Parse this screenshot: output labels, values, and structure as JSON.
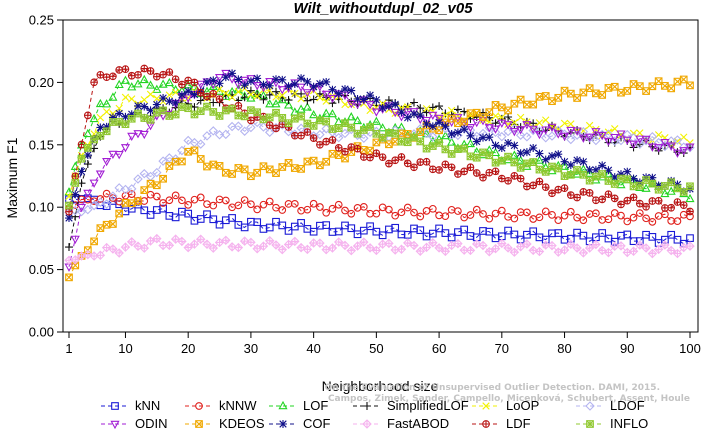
{
  "chart_data": {
    "type": "line",
    "title": "Wilt_withoutdupl_02_v05",
    "xlabel": "Neighborhood size",
    "ylabel": "Maximum F1",
    "xlim": [
      1,
      100
    ],
    "ylim": [
      0,
      0.25
    ],
    "xticks": [
      1,
      10,
      20,
      30,
      40,
      50,
      60,
      70,
      80,
      90,
      100
    ],
    "yticks": [
      "0.00",
      "0.05",
      "0.10",
      "0.15",
      "0.20",
      "0.25"
    ],
    "grid": false,
    "legend_position": "bottom",
    "credit": [
      "Campos, Zimek, Sander, Campello, Micenková, Schubert, Assent, Houle",
      "On the Evaluation of Unsupervised Outlier Detection. DAMI, 2015."
    ],
    "series": [
      {
        "name": "kNN",
        "color": "#1a1ad6",
        "marker": "square",
        "keypoints": [
          [
            1,
            0.105
          ],
          [
            3,
            0.108
          ],
          [
            5,
            0.105
          ],
          [
            10,
            0.1
          ],
          [
            20,
            0.093
          ],
          [
            30,
            0.086
          ],
          [
            50,
            0.081
          ],
          [
            70,
            0.078
          ],
          [
            100,
            0.074
          ]
        ]
      },
      {
        "name": "kNNW",
        "color": "#e0201c",
        "marker": "circle",
        "keypoints": [
          [
            1,
            0.1
          ],
          [
            3,
            0.105
          ],
          [
            8,
            0.108
          ],
          [
            15,
            0.107
          ],
          [
            30,
            0.102
          ],
          [
            50,
            0.097
          ],
          [
            70,
            0.094
          ],
          [
            100,
            0.091
          ]
        ]
      },
      {
        "name": "LOF",
        "color": "#22d422",
        "marker": "triangle-up",
        "keypoints": [
          [
            1,
            0.112
          ],
          [
            3,
            0.15
          ],
          [
            6,
            0.18
          ],
          [
            10,
            0.2
          ],
          [
            20,
            0.195
          ],
          [
            30,
            0.19
          ],
          [
            40,
            0.175
          ],
          [
            50,
            0.165
          ],
          [
            60,
            0.155
          ],
          [
            70,
            0.14
          ],
          [
            80,
            0.13
          ],
          [
            90,
            0.12
          ],
          [
            100,
            0.11
          ]
        ]
      },
      {
        "name": "SimplifiedLOF",
        "color": "#111111",
        "marker": "plus",
        "keypoints": [
          [
            1,
            0.067
          ],
          [
            3,
            0.12
          ],
          [
            6,
            0.16
          ],
          [
            10,
            0.17
          ],
          [
            20,
            0.183
          ],
          [
            30,
            0.19
          ],
          [
            40,
            0.188
          ],
          [
            50,
            0.184
          ],
          [
            60,
            0.178
          ],
          [
            70,
            0.17
          ],
          [
            80,
            0.16
          ],
          [
            90,
            0.152
          ],
          [
            100,
            0.145
          ]
        ]
      },
      {
        "name": "LoOP",
        "color": "#f2f200",
        "marker": "x",
        "keypoints": [
          [
            1,
            0.11
          ],
          [
            3,
            0.14
          ],
          [
            6,
            0.17
          ],
          [
            10,
            0.185
          ],
          [
            20,
            0.19
          ],
          [
            30,
            0.192
          ],
          [
            40,
            0.19
          ],
          [
            50,
            0.18
          ],
          [
            60,
            0.175
          ],
          [
            70,
            0.17
          ],
          [
            80,
            0.165
          ],
          [
            90,
            0.158
          ],
          [
            100,
            0.152
          ]
        ]
      },
      {
        "name": "LDOF",
        "color": "#b4b4f0",
        "marker": "diamond",
        "keypoints": [
          [
            1,
            0.095
          ],
          [
            5,
            0.1
          ],
          [
            10,
            0.115
          ],
          [
            15,
            0.13
          ],
          [
            20,
            0.15
          ],
          [
            25,
            0.16
          ],
          [
            30,
            0.165
          ],
          [
            40,
            0.16
          ],
          [
            50,
            0.158
          ],
          [
            60,
            0.16
          ],
          [
            70,
            0.16
          ],
          [
            80,
            0.158
          ],
          [
            90,
            0.155
          ],
          [
            100,
            0.15
          ]
        ]
      },
      {
        "name": "ODIN",
        "color": "#a21ed4",
        "marker": "triangle-down",
        "keypoints": [
          [
            1,
            0.052
          ],
          [
            3,
            0.1
          ],
          [
            6,
            0.13
          ],
          [
            10,
            0.15
          ],
          [
            15,
            0.17
          ],
          [
            20,
            0.19
          ],
          [
            25,
            0.205
          ],
          [
            30,
            0.2
          ],
          [
            40,
            0.195
          ],
          [
            50,
            0.18
          ],
          [
            60,
            0.17
          ],
          [
            70,
            0.165
          ],
          [
            80,
            0.16
          ],
          [
            90,
            0.155
          ],
          [
            100,
            0.145
          ]
        ]
      },
      {
        "name": "KDEOS",
        "color": "#f0a800",
        "marker": "square-x",
        "keypoints": [
          [
            1,
            0.045
          ],
          [
            3,
            0.06
          ],
          [
            6,
            0.08
          ],
          [
            10,
            0.1
          ],
          [
            15,
            0.12
          ],
          [
            20,
            0.145
          ],
          [
            25,
            0.13
          ],
          [
            30,
            0.128
          ],
          [
            40,
            0.135
          ],
          [
            50,
            0.15
          ],
          [
            60,
            0.165
          ],
          [
            70,
            0.18
          ],
          [
            80,
            0.19
          ],
          [
            90,
            0.195
          ],
          [
            100,
            0.2
          ]
        ]
      },
      {
        "name": "COF",
        "color": "#10108a",
        "marker": "asterisk",
        "keypoints": [
          [
            1,
            0.09
          ],
          [
            3,
            0.13
          ],
          [
            6,
            0.165
          ],
          [
            10,
            0.175
          ],
          [
            20,
            0.19
          ],
          [
            26,
            0.205
          ],
          [
            30,
            0.2
          ],
          [
            40,
            0.2
          ],
          [
            50,
            0.185
          ],
          [
            60,
            0.165
          ],
          [
            70,
            0.15
          ],
          [
            80,
            0.138
          ],
          [
            90,
            0.125
          ],
          [
            100,
            0.115
          ]
        ]
      },
      {
        "name": "FastABOD",
        "color": "#f5b2ee",
        "marker": "diamond-plus",
        "keypoints": [
          [
            1,
            0.058
          ],
          [
            5,
            0.062
          ],
          [
            10,
            0.068
          ],
          [
            15,
            0.072
          ],
          [
            20,
            0.071
          ],
          [
            40,
            0.069
          ],
          [
            60,
            0.068
          ],
          [
            80,
            0.067
          ],
          [
            100,
            0.066
          ]
        ]
      },
      {
        "name": "LDF",
        "color": "#b81414",
        "marker": "circle-plus",
        "keypoints": [
          [
            1,
            0.097
          ],
          [
            3,
            0.15
          ],
          [
            5,
            0.2
          ],
          [
            8,
            0.208
          ],
          [
            15,
            0.208
          ],
          [
            20,
            0.2
          ],
          [
            25,
            0.185
          ],
          [
            30,
            0.173
          ],
          [
            40,
            0.155
          ],
          [
            50,
            0.14
          ],
          [
            60,
            0.132
          ],
          [
            70,
            0.125
          ],
          [
            80,
            0.112
          ],
          [
            90,
            0.105
          ],
          [
            100,
            0.1
          ]
        ]
      },
      {
        "name": "INFLO",
        "color": "#90c830",
        "marker": "square-star",
        "keypoints": [
          [
            1,
            0.1
          ],
          [
            3,
            0.14
          ],
          [
            6,
            0.16
          ],
          [
            10,
            0.17
          ],
          [
            20,
            0.178
          ],
          [
            30,
            0.175
          ],
          [
            40,
            0.168
          ],
          [
            50,
            0.16
          ],
          [
            60,
            0.148
          ],
          [
            70,
            0.138
          ],
          [
            80,
            0.128
          ],
          [
            90,
            0.12
          ],
          [
            100,
            0.115
          ]
        ]
      }
    ]
  }
}
